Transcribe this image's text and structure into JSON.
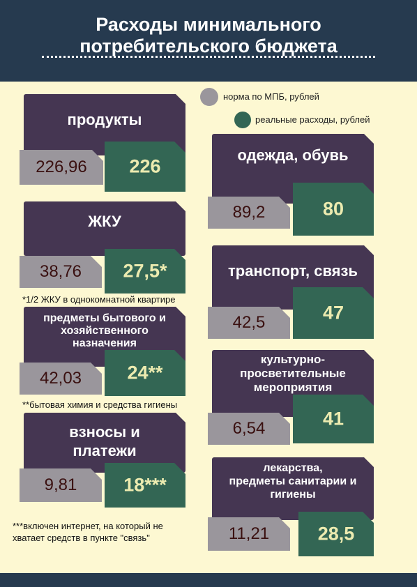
{
  "header": {
    "title": "Расходы минимального\nпотребительского бюджета"
  },
  "chart_data": {
    "type": "table",
    "title": "Расходы минимального потребительского бюджета",
    "legend": {
      "norm": "норма по МПБ, рублей",
      "real": "реальные расходы, рублей"
    },
    "categories": [
      "продукты",
      "ЖКУ",
      "предметы бытового и\nхозяйственного\nназначения",
      "взносы и\nплатежи",
      "одежда, обувь",
      "транспорт, связь",
      "культурно-\nпросветительные\nмероприятия",
      "лекарства,\nпредметы санитарии и\nгигиены"
    ],
    "series": [
      {
        "name": "норма по МПБ, рублей",
        "values": [
          "226,96",
          "38,76",
          "42,03",
          "9,81",
          "89,2",
          "42,5",
          "6,54",
          "11,21"
        ]
      },
      {
        "name": "реальные расходы, рублей",
        "values": [
          "226",
          "27,5*",
          "24**",
          "18***",
          "80",
          "47",
          "41",
          "28,5"
        ]
      }
    ],
    "notes": [
      "*1/2 ЖКУ в однокомнатной квартире",
      "**бытовая химия и средства гигиены",
      "***включен интернет, на который не\nхватает средств в пункте \"связь\""
    ]
  },
  "colors": {
    "header_bg": "#263a4f",
    "page_bg": "#fdf8d2",
    "card_bg": "#453652",
    "norm_box": "#9a969c",
    "norm_text": "#3a1010",
    "real_box": "#336654",
    "real_text": "#ecebb0"
  }
}
